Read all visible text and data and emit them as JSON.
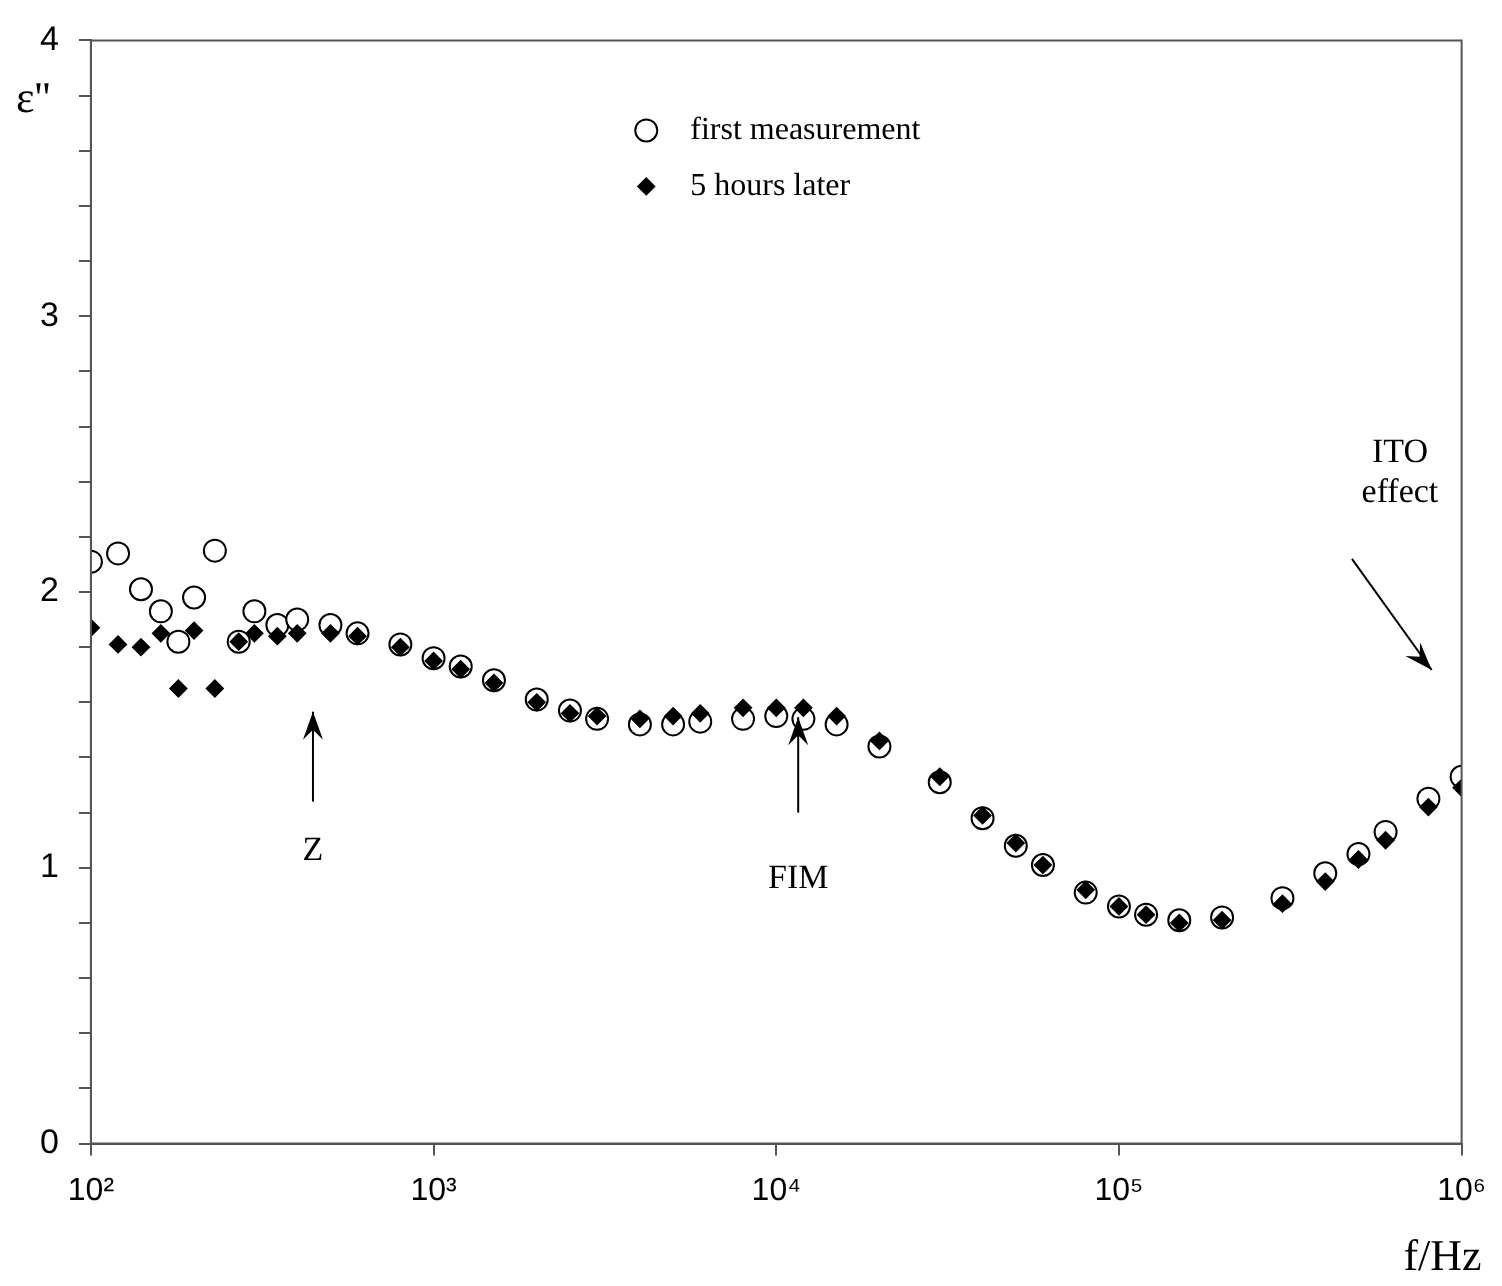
{
  "chart_data": {
    "type": "scatter",
    "xlabel": "f/Hz",
    "ylabel": "ε''",
    "log": "x",
    "legend": "top",
    "grid": false,
    "xlim": [
      100,
      1000000
    ],
    "xticks": [
      {
        "value": 100,
        "label": "10²"
      },
      {
        "value": 1000,
        "label": "10³"
      },
      {
        "value": 10000,
        "label": "10⁴"
      },
      {
        "value": 100000,
        "label": "10⁵"
      },
      {
        "value": 1000000,
        "label": "10⁶"
      }
    ],
    "ylim": [
      0,
      4
    ],
    "yticks": [
      0,
      {
        "value": 0.2,
        "label": null
      },
      {
        "value": 0.4,
        "label": null
      },
      {
        "value": 0.6,
        "label": null
      },
      {
        "value": 0.8,
        "label": null
      },
      1,
      {
        "value": 1.2,
        "label": null
      },
      {
        "value": 1.4,
        "label": null
      },
      {
        "value": 1.6,
        "label": null
      },
      {
        "value": 1.8,
        "label": null
      },
      2,
      {
        "value": 2.2,
        "label": null
      },
      {
        "value": 2.4,
        "label": null
      },
      {
        "value": 2.6,
        "label": null
      },
      {
        "value": 2.8,
        "label": null
      },
      3,
      {
        "value": 3.2,
        "label": null
      },
      {
        "value": 3.4,
        "label": null
      },
      {
        "value": 3.6,
        "label": null
      },
      {
        "value": 3.8,
        "label": null
      },
      4
    ],
    "series": [
      {
        "name": "first measurement",
        "color": "#000000",
        "marker": "circle",
        "x": [
          100,
          120,
          140,
          160,
          180,
          200,
          230,
          270,
          300,
          350,
          400,
          500,
          600,
          800,
          1000,
          1200,
          1500,
          2000,
          2500,
          3000,
          4000,
          5000,
          6000,
          8000,
          10000,
          12000,
          15000,
          20000,
          30000,
          40000,
          50000,
          60000,
          80000,
          100000,
          120000,
          150000,
          200000,
          300000,
          400000,
          500000,
          600000,
          800000,
          1000000
        ],
        "values": [
          2.11,
          2.14,
          2.01,
          1.93,
          1.82,
          1.98,
          2.15,
          1.82,
          1.93,
          1.88,
          1.9,
          1.88,
          1.85,
          1.81,
          1.76,
          1.73,
          1.68,
          1.61,
          1.57,
          1.54,
          1.52,
          1.52,
          1.53,
          1.54,
          1.55,
          1.54,
          1.52,
          1.44,
          1.31,
          1.18,
          1.08,
          1.01,
          0.91,
          0.86,
          0.83,
          0.81,
          0.82,
          0.89,
          0.98,
          1.05,
          1.13,
          1.25,
          1.33
        ]
      },
      {
        "name": "5 hours later",
        "color": "#000000",
        "marker": "diamond",
        "x": [
          100,
          120,
          140,
          160,
          180,
          200,
          230,
          270,
          300,
          350,
          400,
          500,
          600,
          800,
          1000,
          1200,
          1500,
          2000,
          2500,
          3000,
          4000,
          5000,
          6000,
          8000,
          10000,
          12000,
          15000,
          20000,
          30000,
          40000,
          50000,
          60000,
          80000,
          100000,
          120000,
          150000,
          200000,
          300000,
          400000,
          500000,
          600000,
          800000,
          1000000
        ],
        "values": [
          1.87,
          1.81,
          1.8,
          1.85,
          1.65,
          1.86,
          1.65,
          1.82,
          1.85,
          1.84,
          1.85,
          1.85,
          1.84,
          1.8,
          1.75,
          1.72,
          1.67,
          1.6,
          1.56,
          1.55,
          1.54,
          1.55,
          1.56,
          1.58,
          1.58,
          1.58,
          1.55,
          1.46,
          1.33,
          1.19,
          1.09,
          1.01,
          0.92,
          0.86,
          0.83,
          0.8,
          0.81,
          0.87,
          0.95,
          1.03,
          1.1,
          1.22,
          1.29
        ]
      }
    ],
    "annotations": [
      "Z",
      "FIM",
      "ITO effect"
    ]
  }
}
